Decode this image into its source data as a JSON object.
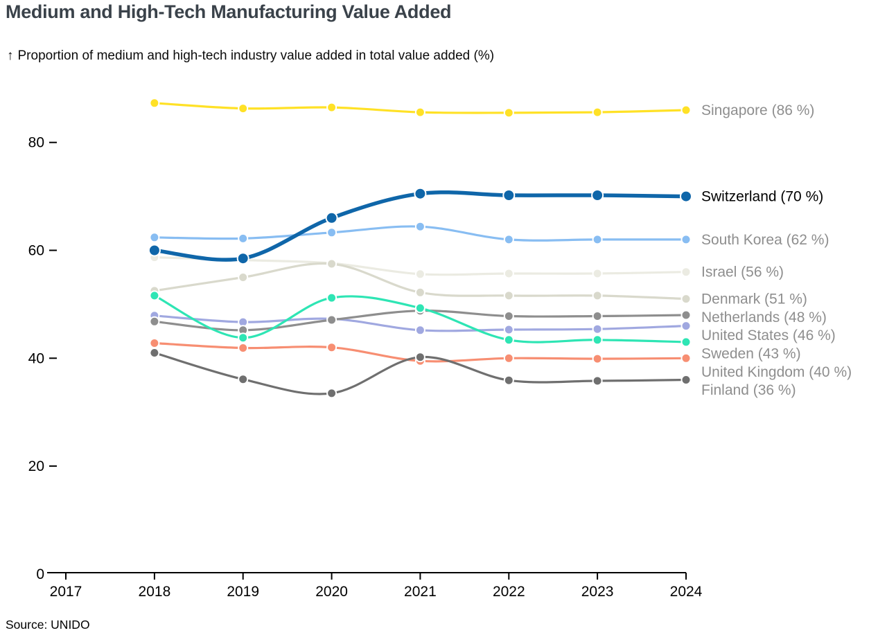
{
  "header": {
    "title": "Medium and High-Tech Manufacturing Value Added",
    "y_axis_arrow": "↑",
    "subtitle": "Proportion of medium and high-tech industry value added in total value added (%)"
  },
  "footer": {
    "source": "Source: UNIDO"
  },
  "colors": {
    "title_text": "#3a424a",
    "axis_text": "#000000",
    "muted_label_text": "#8e8e8e",
    "emphasis_label_text": "#000000",
    "axis_line": "#000000",
    "background": "#ffffff"
  },
  "chart_data": {
    "type": "line",
    "title": "Medium and High-Tech Manufacturing Value Added",
    "ylabel": "Proportion of medium and high-tech industry value added in total value added (%)",
    "x": [
      2018,
      2019,
      2020,
      2021,
      2022,
      2023,
      2024
    ],
    "x_axis_ticks": [
      "2017",
      "2018",
      "2019",
      "2020",
      "2021",
      "2022",
      "2023",
      "2024"
    ],
    "x_domain": [
      2017,
      2024
    ],
    "yticks": [
      "0",
      "20",
      "40",
      "60",
      "80"
    ],
    "ytick_values": [
      0,
      20,
      40,
      60,
      80
    ],
    "ylim": [
      0,
      90
    ],
    "grid": false,
    "legend_position": "right-end-labels",
    "series": [
      {
        "name": "Singapore",
        "end_label": "Singapore (86 %)",
        "final_value": 86,
        "color": "#ffe126",
        "emphasis": false,
        "values": [
          87.3,
          86.3,
          86.5,
          85.6,
          85.5,
          85.6,
          86.0
        ]
      },
      {
        "name": "Switzerland",
        "end_label": "Switzerland (70 %)",
        "final_value": 70,
        "color": "#0f66a9",
        "emphasis": true,
        "values": [
          60.0,
          58.5,
          66.0,
          70.5,
          70.2,
          70.2,
          70.0
        ]
      },
      {
        "name": "South Korea",
        "end_label": "South Korea (62 %)",
        "final_value": 62,
        "color": "#88bdf2",
        "emphasis": false,
        "values": [
          62.4,
          62.2,
          63.3,
          64.4,
          62.0,
          62.0,
          62.0
        ]
      },
      {
        "name": "Israel",
        "end_label": "Israel (56 %)",
        "final_value": 56,
        "color": "#ebebe2",
        "emphasis": false,
        "values": [
          58.7,
          58.2,
          57.6,
          55.6,
          55.7,
          55.7,
          56.0
        ]
      },
      {
        "name": "Denmark",
        "end_label": "Denmark (51 %)",
        "final_value": 51,
        "color": "#d9d9cc",
        "emphasis": false,
        "values": [
          52.5,
          55.0,
          57.5,
          52.2,
          51.6,
          51.6,
          51.0
        ]
      },
      {
        "name": "Netherlands",
        "end_label": "Netherlands (48 %)",
        "final_value": 48,
        "color": "#8e8e8e",
        "emphasis": false,
        "values": [
          46.8,
          45.2,
          47.1,
          48.8,
          47.8,
          47.8,
          48.0
        ]
      },
      {
        "name": "United States",
        "end_label": "United States (46 %)",
        "final_value": 46,
        "color": "#a0a8e0",
        "emphasis": false,
        "values": [
          47.9,
          46.7,
          47.3,
          45.2,
          45.3,
          45.4,
          46.0
        ]
      },
      {
        "name": "Sweden",
        "end_label": "Sweden (43 %)",
        "final_value": 43,
        "color": "#2ee5b4",
        "emphasis": false,
        "values": [
          51.6,
          43.8,
          51.2,
          49.3,
          43.4,
          43.4,
          43.0
        ]
      },
      {
        "name": "United Kingdom",
        "end_label": "United Kingdom (40 %)",
        "final_value": 40,
        "color": "#f78e72",
        "emphasis": false,
        "values": [
          42.8,
          41.9,
          42.0,
          39.5,
          40.0,
          39.9,
          40.0
        ]
      },
      {
        "name": "Finland",
        "end_label": "Finland (36 %)",
        "final_value": 36,
        "color": "#6f6f6f",
        "emphasis": false,
        "values": [
          41.0,
          36.1,
          33.5,
          40.2,
          35.9,
          35.8,
          36.0
        ]
      }
    ]
  }
}
